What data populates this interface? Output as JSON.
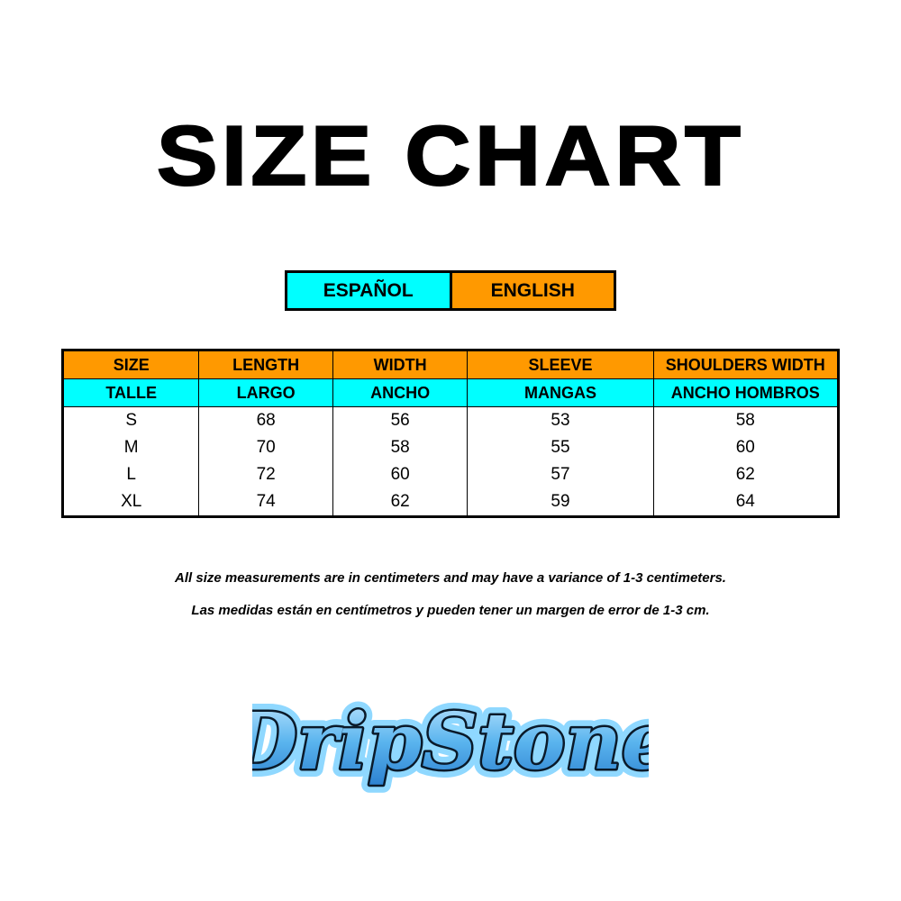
{
  "title": "SIZE CHART",
  "languages": {
    "spanish": "ESPAÑOL",
    "english": "ENGLISH"
  },
  "colors": {
    "orange": "#ff9900",
    "cyan": "#00ffff",
    "logo_blue": "#4aa8e8"
  },
  "table": {
    "headers_en": [
      "SIZE",
      "LENGTH",
      "WIDTH",
      "SLEEVE",
      "SHOULDERS WIDTH"
    ],
    "headers_es": [
      "TALLE",
      "LARGO",
      "ANCHO",
      "MANGAS",
      "ANCHO HOMBROS"
    ],
    "rows": [
      [
        "S",
        "68",
        "56",
        "53",
        "58"
      ],
      [
        "M",
        "70",
        "58",
        "55",
        "60"
      ],
      [
        "L",
        "72",
        "60",
        "57",
        "62"
      ],
      [
        "XL",
        "74",
        "62",
        "59",
        "64"
      ]
    ]
  },
  "notes": {
    "english": "All size measurements are in centimeters and may have a variance of 1-3 centimeters.",
    "spanish": "Las medidas están en centímetros y pueden tener un margen de error de 1-3 cm."
  },
  "logo": {
    "text": "DripStone"
  }
}
